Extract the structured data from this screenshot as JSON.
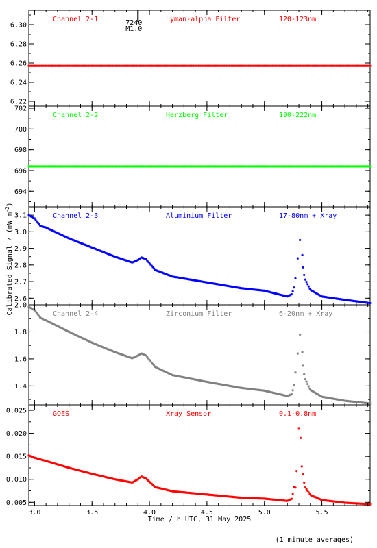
{
  "chart_data": {
    "type": "scatter",
    "xlabel": "Time / h UTC, 31 May 2025",
    "ylabel": "Calibrated Signal / (mW m",
    "ylabel_sup": "-2",
    "ylabel_close": ")",
    "footnote": "(1 minute averages)",
    "xlim": [
      2.95,
      5.92
    ],
    "xticks": [
      3.0,
      3.5,
      4.0,
      4.5,
      5.0,
      5.5
    ],
    "xtick_labels": [
      "3.0",
      "3.5",
      "4.0",
      "4.5",
      "5.0",
      "5.5"
    ],
    "flare_marker": {
      "x": 3.9,
      "label_top": "7240",
      "label_bottom": "M1.0"
    },
    "panels": [
      {
        "channel": "Channel 2-1",
        "filter": "Lyman-alpha Filter",
        "band": "120-123nm",
        "color": "#ff0000",
        "label_color": "#ff0000",
        "ylim": [
          6.215,
          6.315
        ],
        "yticks": [
          6.22,
          6.24,
          6.26,
          6.28,
          6.3
        ],
        "ytick_labels": [
          "6.22",
          "6.24",
          "6.26",
          "6.28",
          "6.30"
        ],
        "profile": "flat",
        "base": 6.257
      },
      {
        "channel": "Channel 2-2",
        "filter": "Herzberg Filter",
        "band": "190-222nm",
        "color": "#00ff00",
        "label_color": "#00ff00",
        "ylim": [
          692.5,
          702.2
        ],
        "yticks": [
          694,
          696,
          698,
          700,
          702
        ],
        "ytick_labels": [
          "694",
          "696",
          "698",
          "700",
          "702"
        ],
        "profile": "flat",
        "base": 696.4
      },
      {
        "channel": "Channel 2-3",
        "filter": "Aluminium Filter",
        "band": "17-80nm + Xray",
        "color": "#0000ff",
        "label_color": "#0000ff",
        "ylim": [
          2.56,
          3.15
        ],
        "yticks": [
          2.6,
          2.7,
          2.8,
          2.9,
          3.0,
          3.1
        ],
        "ytick_labels": [
          "2.6",
          "2.7",
          "2.8",
          "2.9",
          "3.0",
          "3.1"
        ],
        "profile": "flare",
        "keypoints": [
          [
            2.95,
            3.1
          ],
          [
            3.0,
            3.08
          ],
          [
            3.05,
            3.035
          ],
          [
            3.1,
            3.025
          ],
          [
            3.3,
            2.96
          ],
          [
            3.5,
            2.905
          ],
          [
            3.7,
            2.85
          ],
          [
            3.85,
            2.815
          ],
          [
            3.9,
            2.83
          ],
          [
            3.93,
            2.845
          ],
          [
            3.97,
            2.835
          ],
          [
            4.05,
            2.77
          ],
          [
            4.2,
            2.73
          ],
          [
            4.5,
            2.695
          ],
          [
            4.8,
            2.66
          ],
          [
            5.0,
            2.645
          ],
          [
            5.2,
            2.61
          ],
          [
            5.24,
            2.625
          ],
          [
            5.28,
            2.72
          ],
          [
            5.3,
            2.95
          ],
          [
            5.32,
            2.86
          ],
          [
            5.35,
            2.72
          ],
          [
            5.4,
            2.65
          ],
          [
            5.5,
            2.61
          ],
          [
            5.7,
            2.59
          ],
          [
            5.92,
            2.57
          ]
        ],
        "sparse_points": [
          [
            5.27,
            2.72
          ],
          [
            5.29,
            2.84
          ],
          [
            5.31,
            2.95
          ],
          [
            5.33,
            2.86
          ]
        ]
      },
      {
        "channel": "Channel 2-4",
        "filter": "Zirconium Filter",
        "band": "6-20nm + Xray",
        "color": "#808080",
        "label_color": "#808080",
        "ylim": [
          1.26,
          2.0
        ],
        "yticks": [
          1.4,
          1.6,
          1.8,
          2.0
        ],
        "ytick_labels": [
          "1.4",
          "1.6",
          "1.8",
          "2.0"
        ],
        "profile": "flare",
        "keypoints": [
          [
            2.95,
            1.985
          ],
          [
            3.0,
            1.96
          ],
          [
            3.05,
            1.905
          ],
          [
            3.1,
            1.885
          ],
          [
            3.3,
            1.8
          ],
          [
            3.5,
            1.72
          ],
          [
            3.7,
            1.65
          ],
          [
            3.85,
            1.605
          ],
          [
            3.9,
            1.625
          ],
          [
            3.93,
            1.64
          ],
          [
            3.97,
            1.625
          ],
          [
            4.05,
            1.54
          ],
          [
            4.2,
            1.48
          ],
          [
            4.5,
            1.43
          ],
          [
            4.8,
            1.385
          ],
          [
            5.0,
            1.365
          ],
          [
            5.2,
            1.325
          ],
          [
            5.24,
            1.34
          ],
          [
            5.28,
            1.5
          ],
          [
            5.3,
            1.78
          ],
          [
            5.32,
            1.65
          ],
          [
            5.35,
            1.46
          ],
          [
            5.4,
            1.37
          ],
          [
            5.5,
            1.32
          ],
          [
            5.7,
            1.29
          ],
          [
            5.92,
            1.27
          ]
        ],
        "sparse_points": [
          [
            5.27,
            1.5
          ],
          [
            5.29,
            1.64
          ],
          [
            5.31,
            1.78
          ],
          [
            5.33,
            1.65
          ]
        ]
      },
      {
        "channel": "GOES",
        "filter": "Xray Sensor",
        "band": "0.1-0.8nm",
        "color": "#ff0000",
        "label_color": "#ff0000",
        "ylim": [
          0.0043,
          0.0262
        ],
        "yticks": [
          0.005,
          0.01,
          0.015,
          0.02,
          0.025
        ],
        "ytick_labels": [
          "0.005",
          "0.010",
          "0.015",
          "0.020",
          "0.025"
        ],
        "profile": "flare",
        "keypoints": [
          [
            2.95,
            0.0152
          ],
          [
            3.0,
            0.0147
          ],
          [
            3.1,
            0.014
          ],
          [
            3.3,
            0.0125
          ],
          [
            3.5,
            0.0112
          ],
          [
            3.7,
            0.01
          ],
          [
            3.85,
            0.0093
          ],
          [
            3.9,
            0.01
          ],
          [
            3.93,
            0.0106
          ],
          [
            3.97,
            0.0102
          ],
          [
            4.05,
            0.0083
          ],
          [
            4.2,
            0.0074
          ],
          [
            4.5,
            0.0067
          ],
          [
            4.8,
            0.006
          ],
          [
            5.0,
            0.0058
          ],
          [
            5.2,
            0.0053
          ],
          [
            5.24,
            0.0058
          ],
          [
            5.28,
            0.012
          ],
          [
            5.3,
            0.021
          ],
          [
            5.32,
            0.014
          ],
          [
            5.35,
            0.0085
          ],
          [
            5.4,
            0.0066
          ],
          [
            5.5,
            0.0055
          ],
          [
            5.7,
            0.0049
          ],
          [
            5.92,
            0.0046
          ]
        ],
        "sparse_points": [
          [
            5.27,
            0.0082
          ],
          [
            5.28,
            0.0118
          ],
          [
            5.3,
            0.021
          ],
          [
            5.315,
            0.019
          ],
          [
            5.325,
            0.0128
          ]
        ]
      }
    ]
  }
}
